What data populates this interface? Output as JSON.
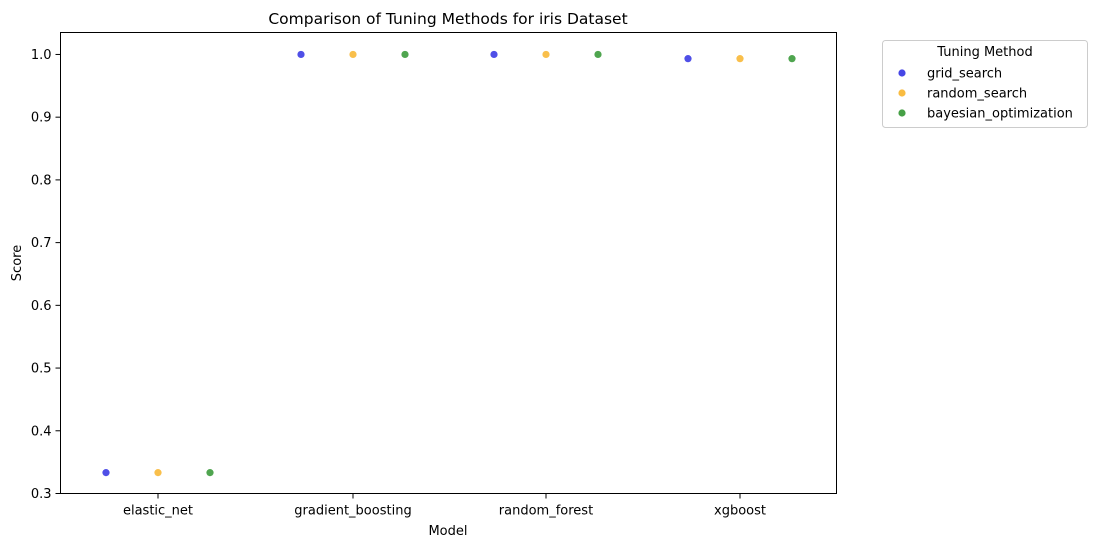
{
  "chart_data": {
    "type": "scatter",
    "title": "Comparison of Tuning Methods for iris Dataset",
    "xlabel": "Model",
    "ylabel": "Score",
    "categories": [
      "elastic_net",
      "gradient_boosting",
      "random_forest",
      "xgboost"
    ],
    "ylim": [
      0.3,
      1.035
    ],
    "yticks": [
      "0.3",
      "0.4",
      "0.5",
      "0.6",
      "0.7",
      "0.8",
      "0.9",
      "1.0"
    ],
    "grid": false,
    "legend": {
      "title": "Tuning Method",
      "placement": "outside-top-right"
    },
    "series": [
      {
        "name": "grid_search",
        "color": "#4646e6",
        "values": [
          0.3333,
          1.0,
          1.0,
          0.9933
        ]
      },
      {
        "name": "random_search",
        "color": "#f9bc41",
        "values": [
          0.3333,
          1.0,
          1.0,
          0.9933
        ]
      },
      {
        "name": "bayesian_optimization",
        "color": "#46a046",
        "values": [
          0.3333,
          1.0,
          1.0,
          0.9933
        ]
      }
    ]
  }
}
